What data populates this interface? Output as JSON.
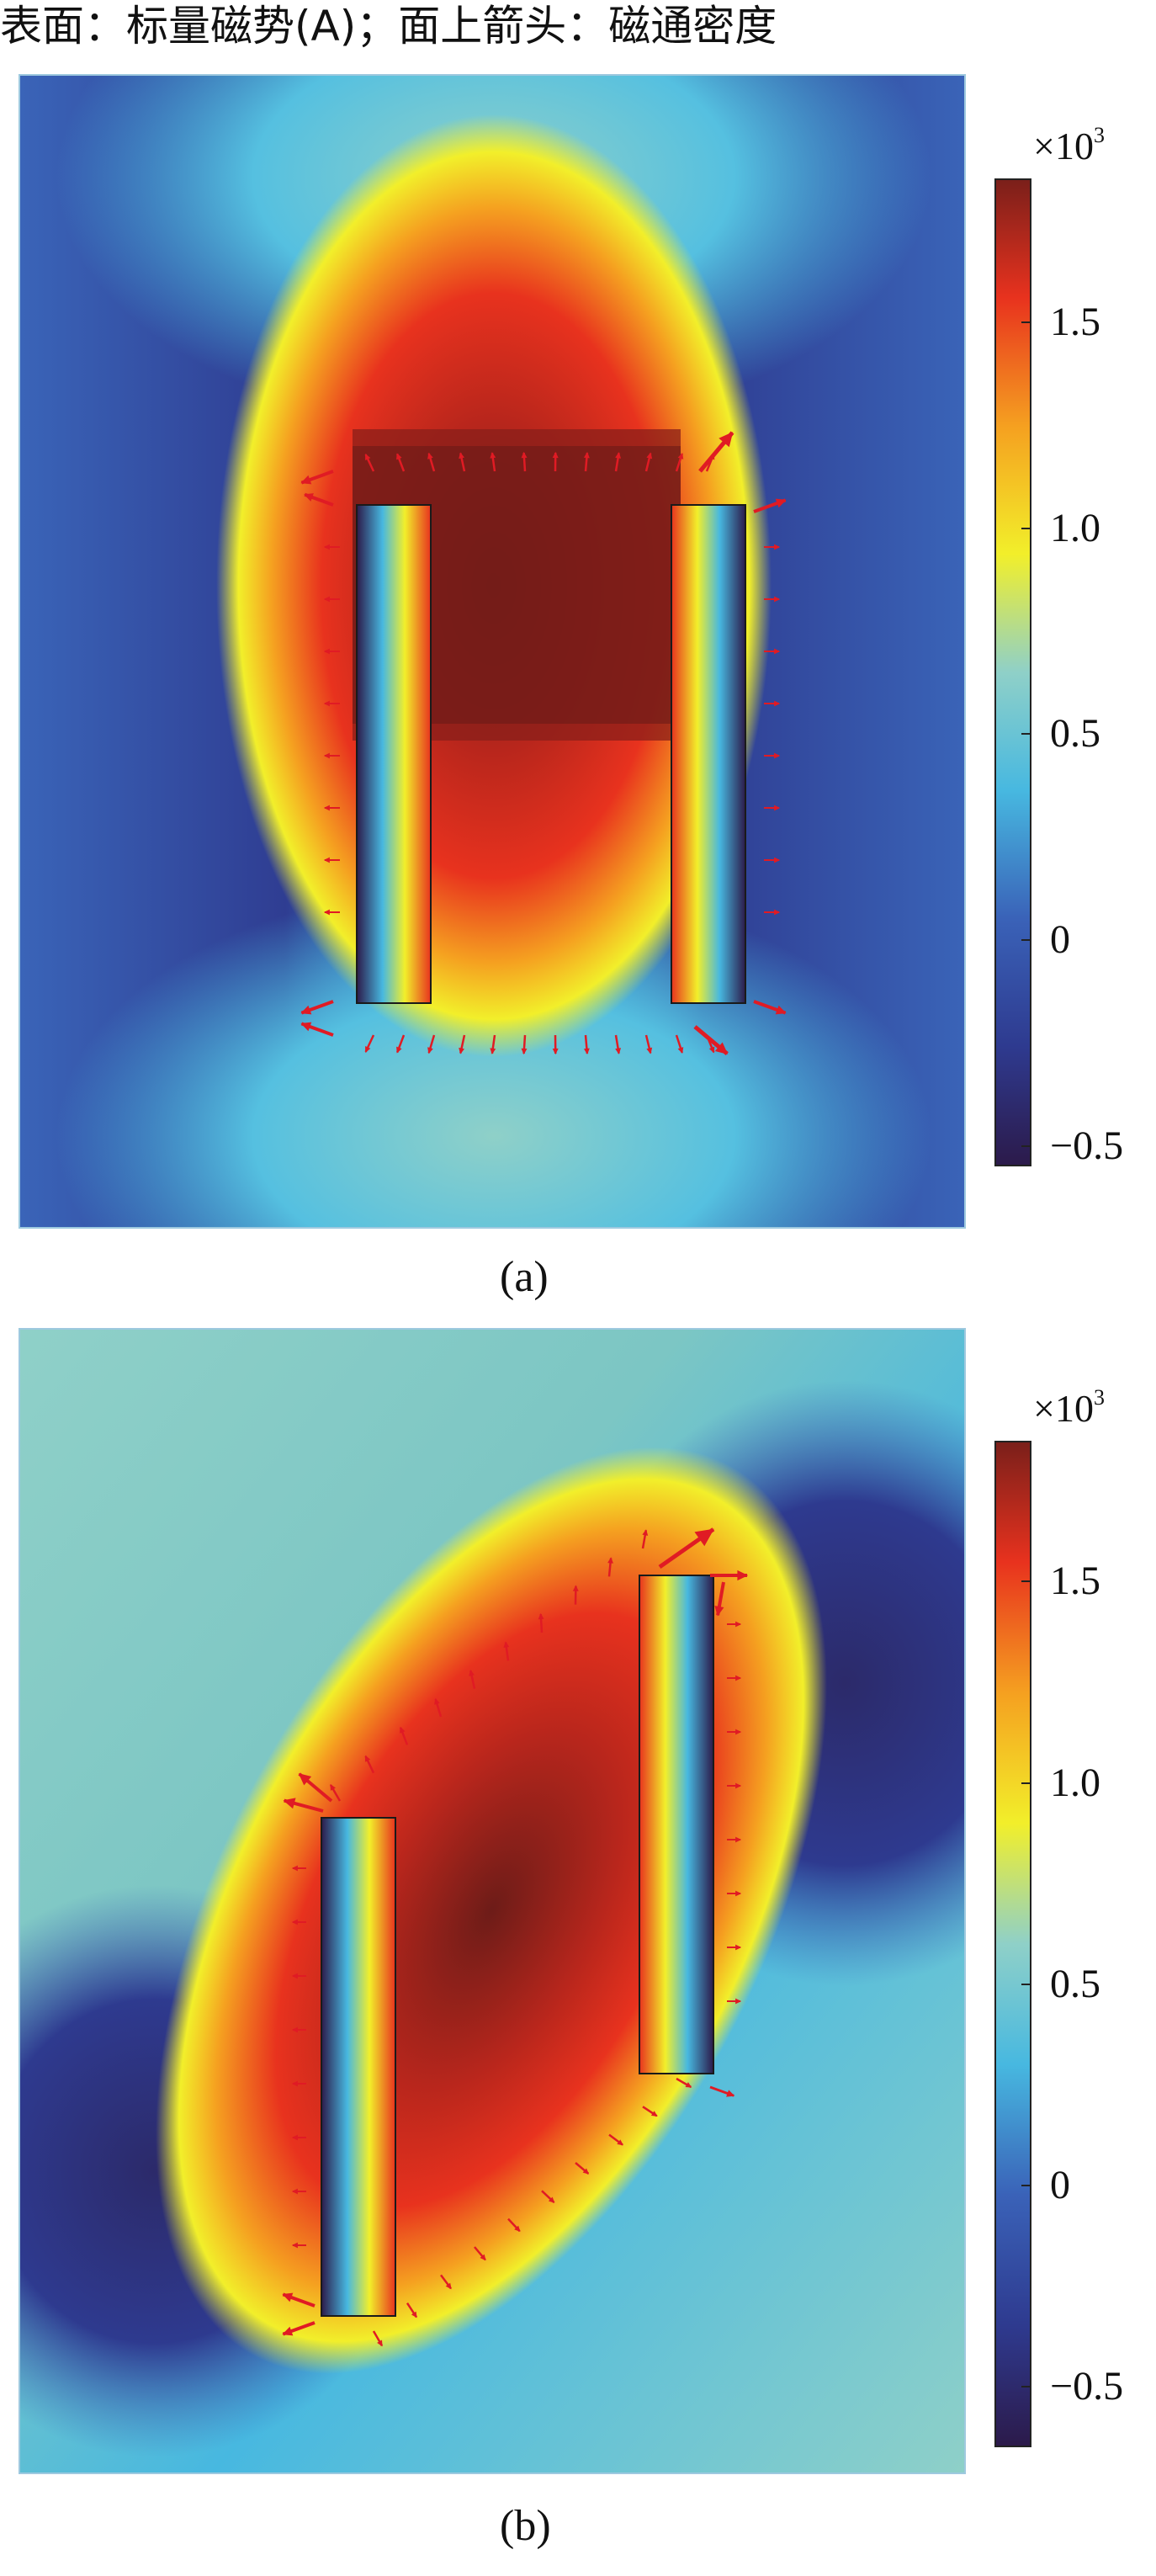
{
  "title": "表面：标量磁势(A)；面上箭头：磁通密度",
  "colors": {
    "cmap": [
      "#2c1a4a",
      "#2e3a8f",
      "#3a62b8",
      "#47b8e0",
      "#8fd0c8",
      "#f2ef2a",
      "#f5a020",
      "#e8321e",
      "#7a1f1a"
    ],
    "arrow": "#e01b24",
    "magnet_outline": "#1a1a1a"
  },
  "panels": [
    {
      "caption": "(a)",
      "multiplier_base": "×10",
      "multiplier_exp": "3",
      "colorbar_ticks": [
        "1.5",
        "1.0",
        "0.5",
        "0",
        "−0.5"
      ],
      "colorbar_range": [
        -0.55,
        1.85
      ]
    },
    {
      "caption": "(b)",
      "multiplier_base": "×10",
      "multiplier_exp": "3",
      "colorbar_ticks": [
        "1.5",
        "1.0",
        "0.5",
        "0",
        "−0.5"
      ],
      "colorbar_range": [
        -0.65,
        1.85
      ]
    }
  ]
}
